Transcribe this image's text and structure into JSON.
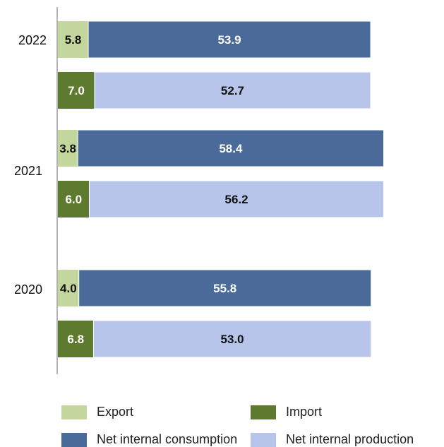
{
  "chart_data": {
    "type": "bar",
    "orientation": "horizontal",
    "stacked": true,
    "categories": [
      "2022",
      "2021",
      "2020"
    ],
    "groups": [
      {
        "year": "2022",
        "rows": [
          {
            "segments": [
              {
                "series": "Export",
                "value": 5.8
              },
              {
                "series": "Net internal consumption",
                "value": 53.9
              }
            ]
          },
          {
            "segments": [
              {
                "series": "Import",
                "value": 7.0
              },
              {
                "series": "Net internal production",
                "value": 52.7
              }
            ]
          }
        ]
      },
      {
        "year": "2021",
        "rows": [
          {
            "segments": [
              {
                "series": "Export",
                "value": 3.8
              },
              {
                "series": "Net internal consumption",
                "value": 58.4
              }
            ]
          },
          {
            "segments": [
              {
                "series": "Import",
                "value": 6.0
              },
              {
                "series": "Net internal production",
                "value": 56.2
              }
            ]
          }
        ]
      },
      {
        "year": "2020",
        "rows": [
          {
            "segments": [
              {
                "series": "Export",
                "value": 4.0
              },
              {
                "series": "Net internal consumption",
                "value": 55.8
              }
            ]
          },
          {
            "segments": [
              {
                "series": "Import",
                "value": 6.8
              },
              {
                "series": "Net internal production",
                "value": 53.0
              }
            ]
          }
        ]
      }
    ],
    "series": [
      {
        "name": "Export",
        "color": "#c3d69b"
      },
      {
        "name": "Import",
        "color": "#5e7a2e"
      },
      {
        "name": "Net internal consumption",
        "color": "#4a6a9a"
      },
      {
        "name": "Net internal production",
        "color": "#b7c5eb"
      }
    ],
    "xlim": [
      0,
      59.7
    ],
    "legend": "bottom",
    "grid": false
  },
  "legend": {
    "export": "Export",
    "import": "Import",
    "consumption": "Net internal consumption",
    "production": "Net internal production"
  }
}
